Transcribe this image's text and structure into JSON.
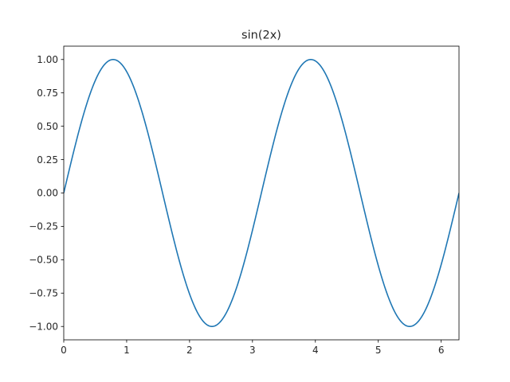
{
  "chart_data": {
    "type": "line",
    "title": "sin(2x)",
    "xlabel": "",
    "ylabel": "",
    "xlim": [
      0,
      6.283185307179586
    ],
    "ylim": [
      -1.1,
      1.1
    ],
    "grid": false,
    "legend": "none",
    "x_ticks": [
      0,
      1,
      2,
      3,
      4,
      5,
      6
    ],
    "x_tick_labels": [
      "0",
      "1",
      "2",
      "3",
      "4",
      "5",
      "6"
    ],
    "y_ticks": [
      -1.0,
      -0.75,
      -0.5,
      -0.25,
      0.0,
      0.25,
      0.5,
      0.75,
      1.0
    ],
    "y_tick_labels": [
      "−1.00",
      "−0.75",
      "−0.50",
      "−0.25",
      "0.00",
      "0.25",
      "0.50",
      "0.75",
      "1.00"
    ],
    "series": [
      {
        "color": "#1f77b4",
        "function": "sin(2x)",
        "x_range": [
          0,
          6.283185307179586
        ],
        "key_points": [
          {
            "x": 0.0,
            "y": 0.0
          },
          {
            "x": 0.785,
            "y": 1.0
          },
          {
            "x": 1.571,
            "y": 0.0
          },
          {
            "x": 2.356,
            "y": -1.0
          },
          {
            "x": 3.142,
            "y": 0.0
          },
          {
            "x": 3.927,
            "y": 1.0
          },
          {
            "x": 4.712,
            "y": 0.0
          },
          {
            "x": 5.498,
            "y": -1.0
          },
          {
            "x": 6.283,
            "y": 0.0
          }
        ]
      }
    ]
  }
}
